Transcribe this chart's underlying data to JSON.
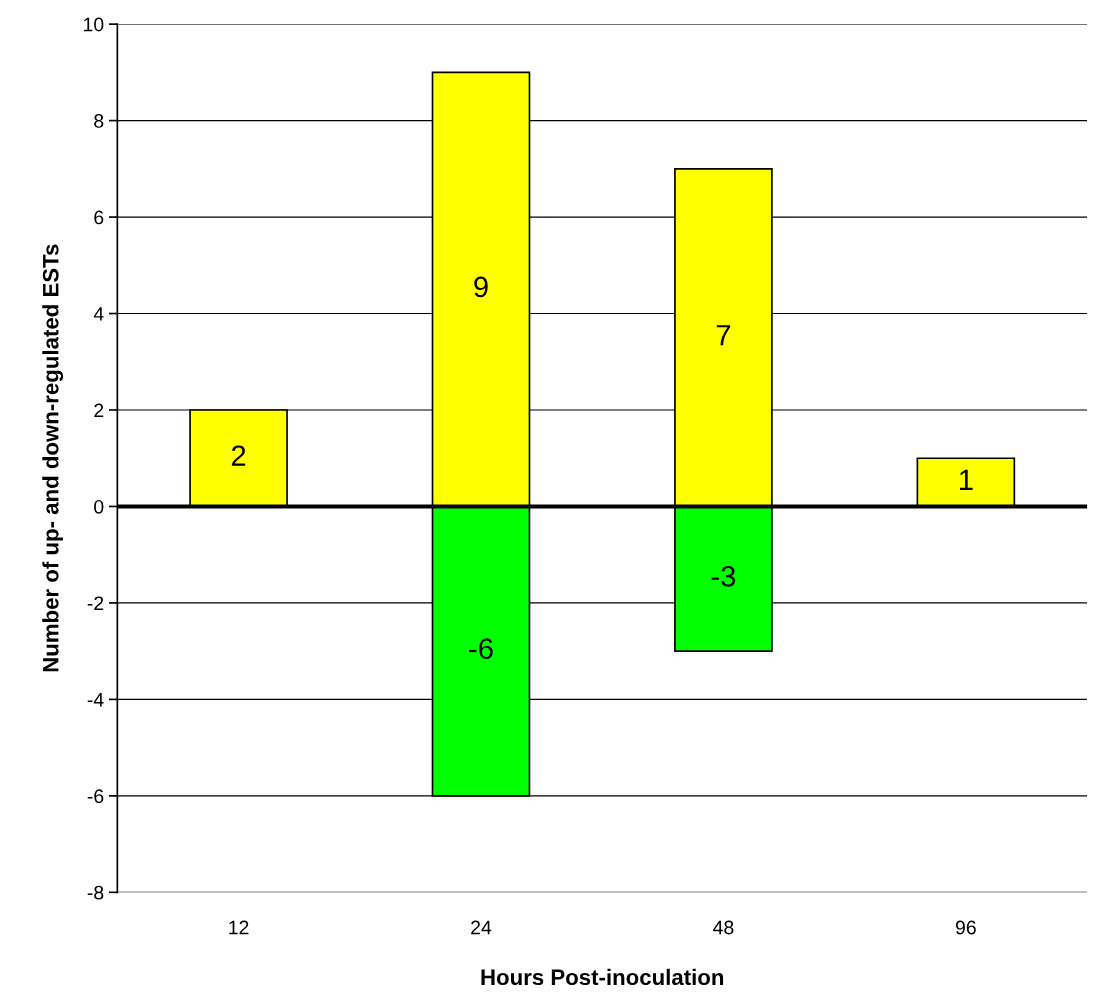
{
  "chart_data": {
    "type": "bar",
    "stacked": true,
    "xlabel": "Hours Post-inoculation",
    "ylabel": "Number of up- and down-regulated ESTs",
    "categories": [
      "12",
      "24",
      "48",
      "96"
    ],
    "series": [
      {
        "color": "#ffff00",
        "values": [
          2,
          9,
          7,
          1
        ]
      },
      {
        "color": "#00ff00",
        "values": [
          null,
          -6,
          -3,
          null
        ]
      }
    ],
    "ylim": [
      -8,
      10
    ],
    "yticks": [
      -8,
      -6,
      -4,
      -2,
      0,
      2,
      4,
      6,
      8,
      10
    ],
    "grid": "y",
    "data_labels": true,
    "legend": false,
    "ref_lines": [
      {
        "axis": "y",
        "value": 0,
        "color": "#000000",
        "line_style": "solid"
      }
    ]
  }
}
